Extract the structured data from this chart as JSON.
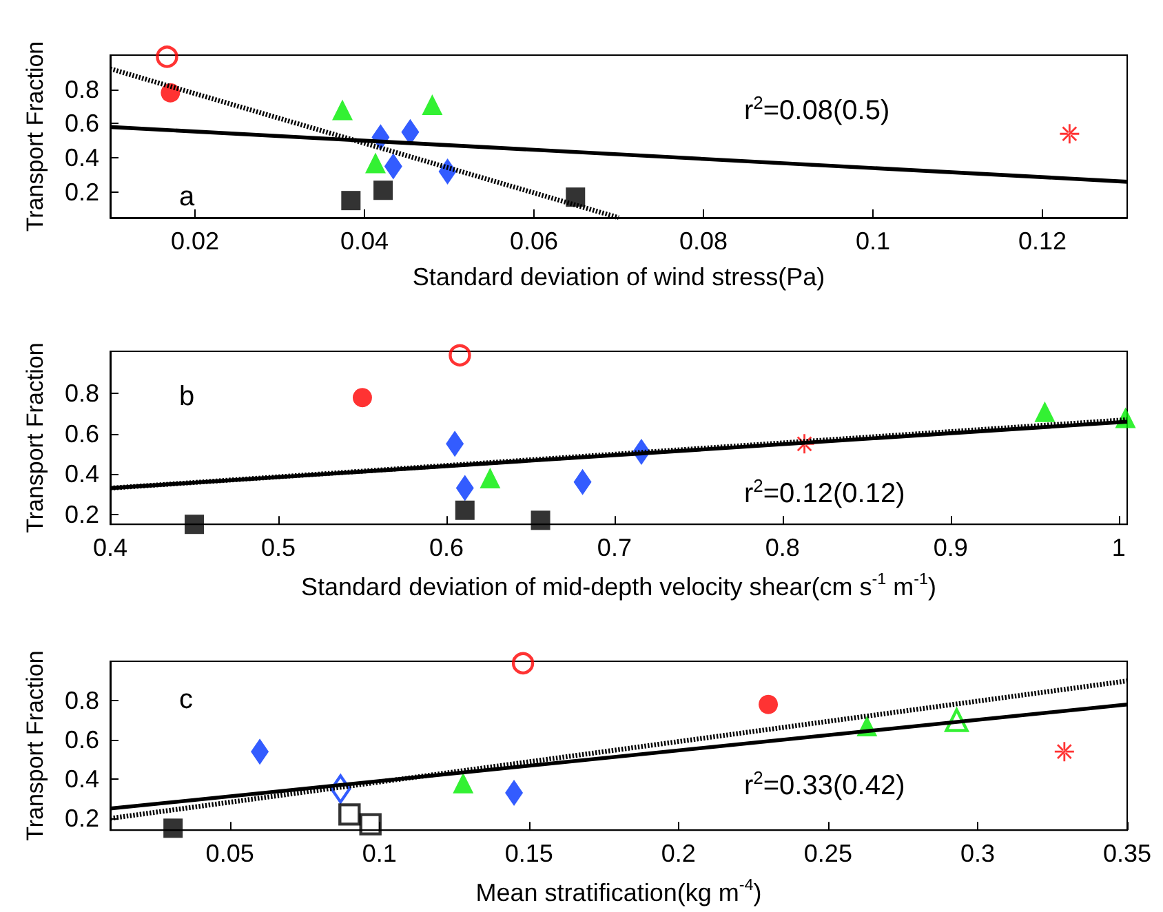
{
  "chart_data": [
    {
      "type": "scatter",
      "xlabel": "Standard deviation of wind stress(Pa)",
      "ylabel": "Transport Fraction",
      "annotations": [
        "a",
        "r$^{2}$=0.08(0.5)"
      ],
      "xlim": [
        0.01,
        0.13
      ],
      "xticks": [
        0.02,
        0.04,
        0.06,
        0.08,
        0.1,
        0.12
      ],
      "ylim": [
        0.05,
        1.0
      ],
      "yticks": [
        0.2,
        0.4,
        0.6,
        0.8
      ],
      "grid": false,
      "series": [
        {
          "marker": "circle-open",
          "color": "#ff0000",
          "x": [
            0.0167
          ],
          "values": [
            0.99
          ]
        },
        {
          "marker": "circle",
          "color": "#ff0000",
          "x": [
            0.0171
          ],
          "values": [
            0.78
          ]
        },
        {
          "marker": "triangle",
          "color": "#00ee00",
          "x": [
            0.0374,
            0.048,
            0.0413
          ],
          "values": [
            0.68,
            0.71,
            0.37
          ]
        },
        {
          "marker": "diamond",
          "color": "#0033ff",
          "x": [
            0.0419,
            0.0454,
            0.0434,
            0.0498
          ],
          "values": [
            0.52,
            0.55,
            0.35,
            0.32
          ]
        },
        {
          "marker": "square",
          "color": "#000000",
          "x": [
            0.0384,
            0.0422,
            0.0649
          ],
          "values": [
            0.15,
            0.21,
            0.17
          ]
        },
        {
          "marker": "star",
          "color": "#ff0000",
          "x": [
            0.1232
          ],
          "values": [
            0.54
          ]
        },
        {
          "type": "line",
          "marker": "none",
          "line_style": "solid",
          "color": "#000000",
          "x": [
            0.01,
            0.13
          ],
          "values": [
            0.58,
            0.26
          ]
        },
        {
          "type": "line",
          "marker": "none",
          "line_style": "dotted",
          "color": "#000000",
          "x": [
            0.01,
            0.07
          ],
          "values": [
            0.92,
            0.05
          ]
        }
      ]
    },
    {
      "type": "scatter",
      "xlabel": "Standard deviation of mid-depth velocity shear(cm s$^{-1}$ m$^{-1}$)",
      "ylabel": "Transport Fraction",
      "annotations": [
        "b",
        "r$^{2}$=0.12(0.12)"
      ],
      "xlim": [
        0.4,
        1.005
      ],
      "xticks": [
        0.4,
        0.5,
        0.6,
        0.7,
        0.8,
        0.9,
        1
      ],
      "ylim": [
        0.15,
        1.01
      ],
      "yticks": [
        0.2,
        0.4,
        0.6,
        0.8
      ],
      "grid": false,
      "series": [
        {
          "marker": "circle-open",
          "color": "#ff0000",
          "x": [
            0.608
          ],
          "values": [
            0.99
          ]
        },
        {
          "marker": "circle",
          "color": "#ff0000",
          "x": [
            0.55
          ],
          "values": [
            0.78
          ]
        },
        {
          "marker": "triangle",
          "color": "#00ee00",
          "x": [
            0.626,
            0.956,
            1.004
          ],
          "values": [
            0.38,
            0.71,
            0.68
          ]
        },
        {
          "marker": "diamond",
          "color": "#0033ff",
          "x": [
            0.605,
            0.611,
            0.681,
            0.716
          ],
          "values": [
            0.55,
            0.33,
            0.36,
            0.51
          ]
        },
        {
          "marker": "square",
          "color": "#000000",
          "x": [
            0.45,
            0.611,
            0.656
          ],
          "values": [
            0.15,
            0.22,
            0.17
          ]
        },
        {
          "marker": "star",
          "color": "#ff0000",
          "x": [
            0.813
          ],
          "values": [
            0.55
          ]
        },
        {
          "type": "line",
          "marker": "none",
          "line_style": "dotted",
          "color": "#000000",
          "x": [
            0.4,
            1.005
          ],
          "values": [
            0.33,
            0.67
          ]
        },
        {
          "type": "line",
          "marker": "none",
          "line_style": "solid",
          "color": "#000000",
          "x": [
            0.4,
            1.005
          ],
          "values": [
            0.33,
            0.66
          ]
        }
      ]
    },
    {
      "type": "scatter",
      "xlabel": "Mean stratification(kg m$^{-4}$)",
      "ylabel": "Transport Fraction",
      "annotations": [
        "c",
        "r$^{2}$=0.33(0.42)"
      ],
      "xlim": [
        0.01,
        0.35
      ],
      "xticks": [
        0.05,
        0.1,
        0.15,
        0.2,
        0.25,
        0.3,
        0.35
      ],
      "ylim": [
        0.14,
        1.0
      ],
      "yticks": [
        0.2,
        0.4,
        0.6,
        0.8
      ],
      "grid": false,
      "series": [
        {
          "marker": "circle-open",
          "color": "#ff0000",
          "x": [
            0.148
          ],
          "values": [
            0.99
          ]
        },
        {
          "marker": "circle",
          "color": "#ff0000",
          "x": [
            0.23
          ],
          "values": [
            0.78
          ]
        },
        {
          "marker": "triangle",
          "color": "#00ee00",
          "x": [
            0.128,
            0.263
          ],
          "values": [
            0.38,
            0.67
          ]
        },
        {
          "marker": "triangle-open",
          "color": "#00ee00",
          "x": [
            0.293
          ],
          "values": [
            0.7
          ]
        },
        {
          "marker": "diamond",
          "color": "#0033ff",
          "x": [
            0.06,
            0.145
          ],
          "values": [
            0.54,
            0.33
          ]
        },
        {
          "marker": "diamond-open",
          "color": "#0033ff",
          "x": [
            0.087
          ],
          "values": [
            0.35
          ]
        },
        {
          "marker": "square",
          "color": "#000000",
          "x": [
            0.031
          ],
          "values": [
            0.15
          ]
        },
        {
          "marker": "square-open",
          "color": "#000000",
          "x": [
            0.09,
            0.097
          ],
          "values": [
            0.22,
            0.17
          ]
        },
        {
          "marker": "star",
          "color": "#ff0000",
          "x": [
            0.329
          ],
          "values": [
            0.54
          ]
        },
        {
          "type": "line",
          "marker": "none",
          "line_style": "solid",
          "color": "#000000",
          "x": [
            0.01,
            0.35
          ],
          "values": [
            0.25,
            0.78
          ]
        },
        {
          "type": "line",
          "marker": "none",
          "line_style": "dotted",
          "color": "#000000",
          "x": [
            0.01,
            0.35
          ],
          "values": [
            0.2,
            0.9
          ]
        }
      ]
    }
  ]
}
